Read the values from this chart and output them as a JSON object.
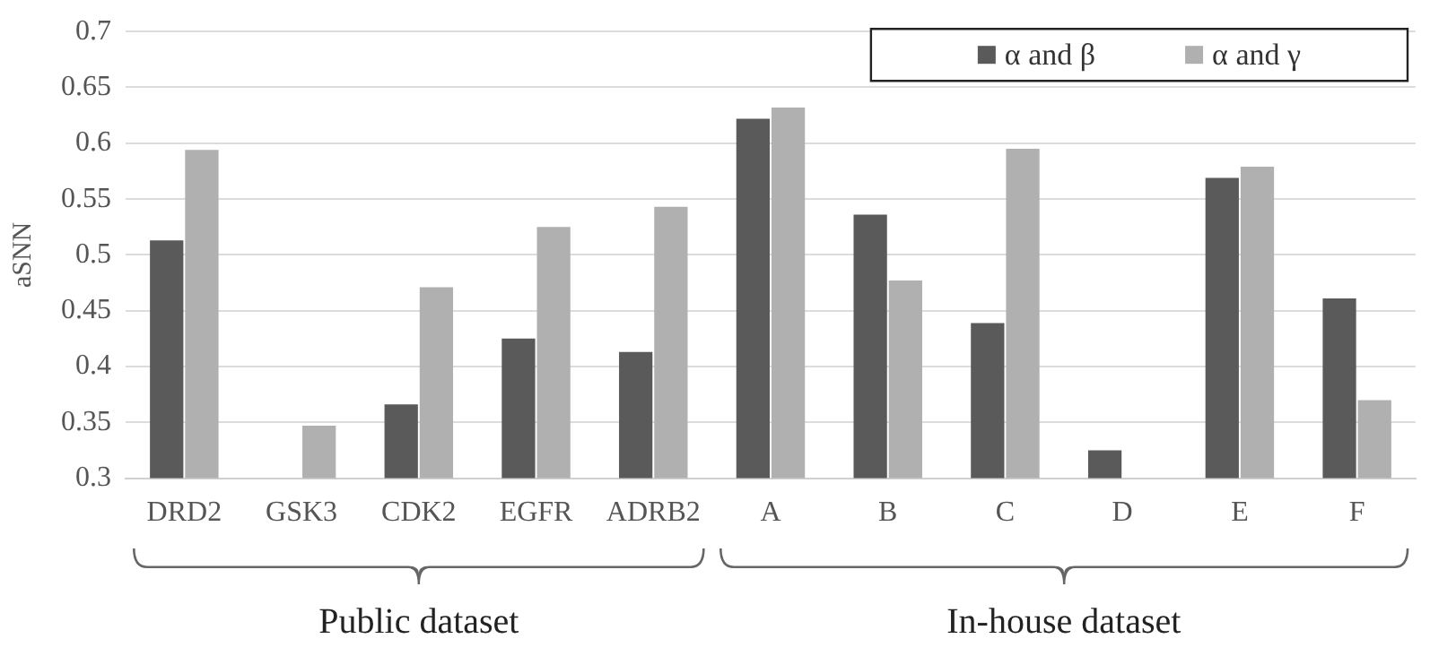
{
  "chart_data": {
    "type": "bar",
    "ylabel": "aSNN",
    "categories": [
      "DRD2",
      "GSK3",
      "CDK2",
      "EGFR",
      "ADRB2",
      "A",
      "B",
      "C",
      "D",
      "E",
      "F"
    ],
    "series": [
      {
        "name": "α and β",
        "color": "#5a5a5a",
        "values": [
          0.513,
          null,
          0.366,
          0.425,
          0.413,
          0.622,
          0.536,
          0.439,
          0.325,
          0.569,
          0.461
        ]
      },
      {
        "name": "α and γ",
        "color": "#b0b0b0",
        "values": [
          0.594,
          0.347,
          0.471,
          0.525,
          0.543,
          0.632,
          0.477,
          0.595,
          null,
          0.579,
          0.37
        ]
      }
    ],
    "ylim": [
      0.3,
      0.7
    ],
    "yticks": [
      0.3,
      0.35,
      0.4,
      0.45,
      0.5,
      0.55,
      0.6,
      0.65,
      0.7
    ],
    "grid": "y",
    "legend": "top right",
    "annotations": [
      "Public dataset",
      "In-house dataset"
    ]
  }
}
